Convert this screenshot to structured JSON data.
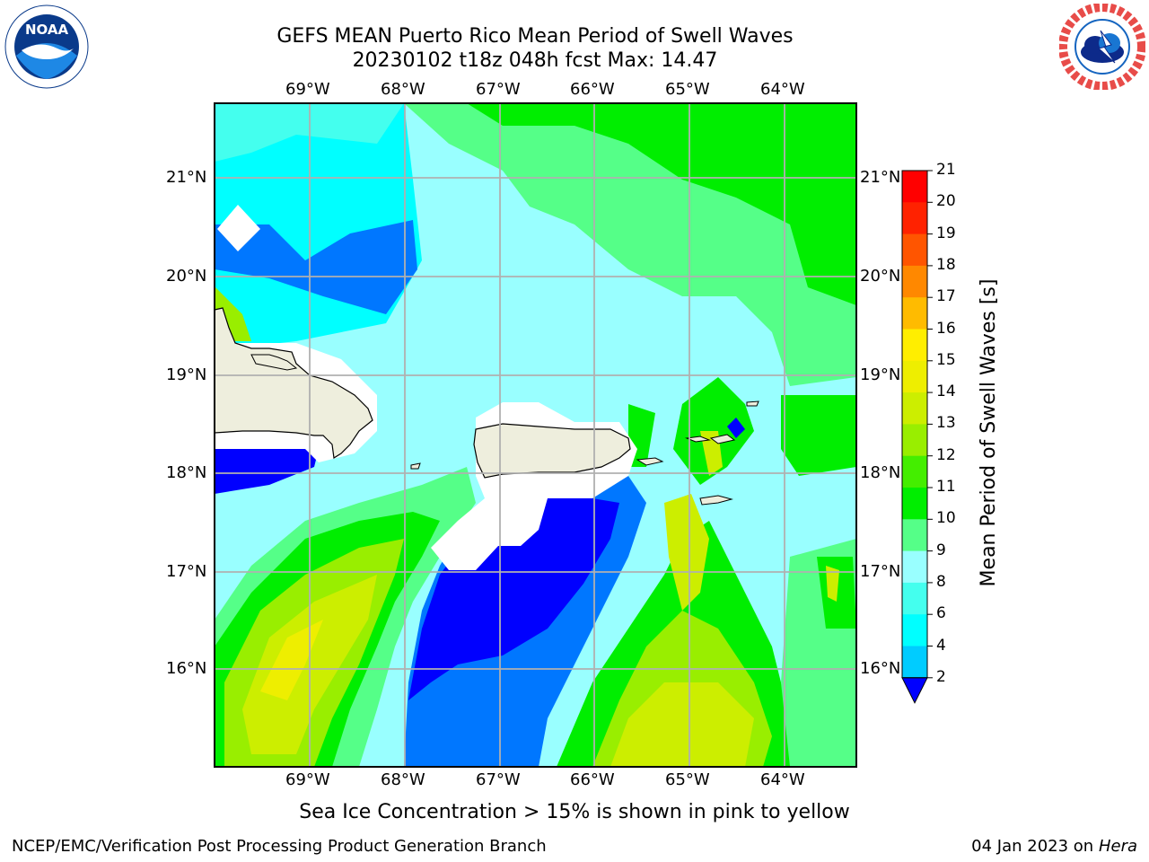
{
  "header": {
    "title_line1": "GEFS MEAN Puerto Rico Mean Period of Swell Waves",
    "title_line2": "20230102 t18z 048h fcst   Max: 14.47"
  },
  "map": {
    "lon_labels": [
      "69°W",
      "68°W",
      "67°W",
      "66°W",
      "65°W",
      "64°W"
    ],
    "lat_labels": [
      "21°N",
      "20°N",
      "19°N",
      "18°N",
      "17°N",
      "16°N"
    ],
    "land_color": "#eeeedd",
    "grid_color": "#b0b0b0"
  },
  "colorbar": {
    "title": "Mean Period of Swell Waves [s]",
    "tick_labels": [
      "2",
      "4",
      "6",
      "8",
      "9",
      "10",
      "11",
      "12",
      "13",
      "14",
      "15",
      "16",
      "17",
      "18",
      "19",
      "20",
      "21"
    ],
    "colors": [
      "#0000ff",
      "#0077ff",
      "#00ccff",
      "#00ffff",
      "#44ffee",
      "#99ffff",
      "#55ff88",
      "#00ee00",
      "#44ee00",
      "#99ee00",
      "#ccee00",
      "#eeee00",
      "#ffee00",
      "#ffbb00",
      "#ff8800",
      "#ff5500",
      "#ff2200",
      "#ff0000"
    ]
  },
  "caption": "Sea Ice Concentration > 15% is shown in pink to yellow",
  "footer": {
    "left": "NCEP/EMC/Verification Post Processing Product Generation Branch",
    "right_date": "04 Jan 2023 on ",
    "right_host": "Hera"
  },
  "logos": {
    "noaa_text": "NOAA",
    "nws_text": "NATIONAL WEATHER SERVICE"
  }
}
